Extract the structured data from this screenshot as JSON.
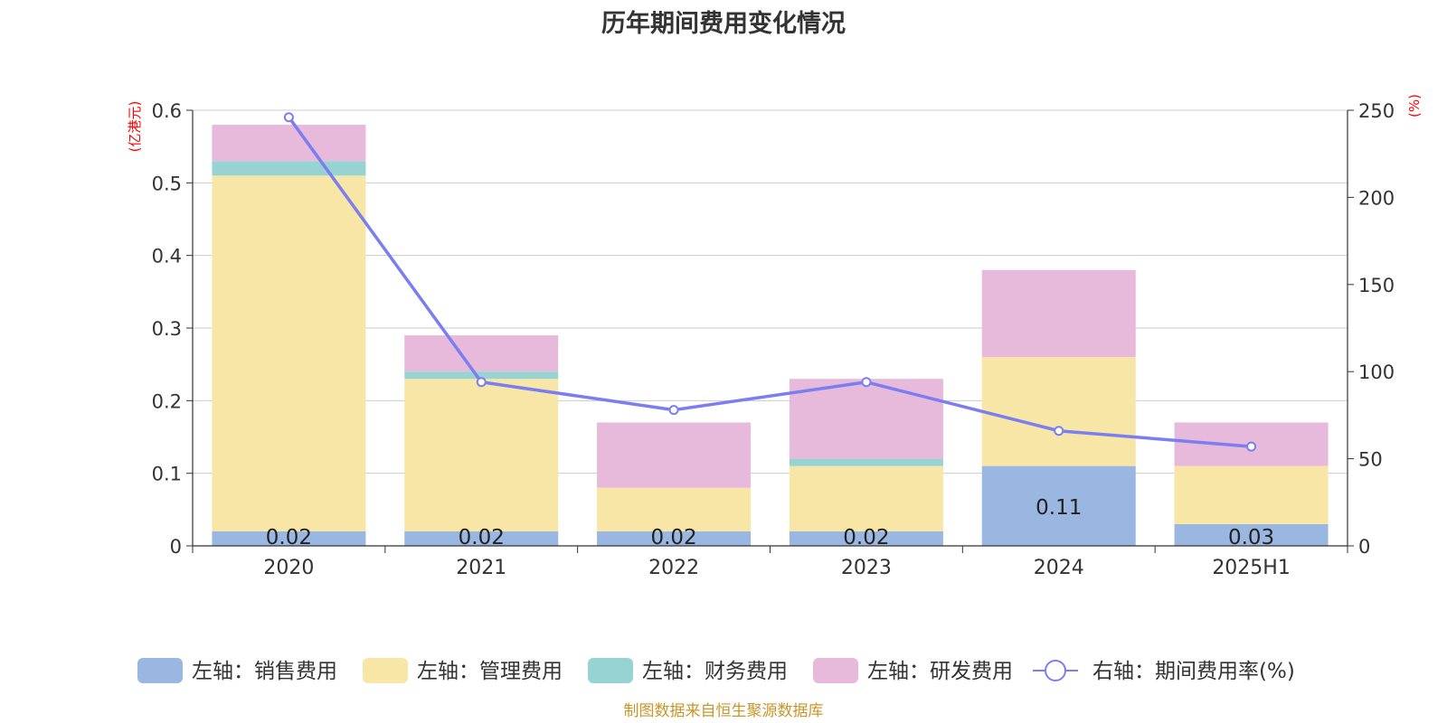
{
  "chart_data": {
    "type": "bar",
    "title": "历年期间费用变化情况",
    "categories": [
      "2020",
      "2021",
      "2022",
      "2023",
      "2024",
      "2025H1"
    ],
    "left_axis": {
      "unit": "(亿港元)",
      "range": [
        0,
        0.6
      ],
      "ticks": [
        "0",
        "0.1",
        "0.2",
        "0.3",
        "0.4",
        "0.5",
        "0.6"
      ]
    },
    "right_axis": {
      "unit": "(%)",
      "range": [
        0,
        250
      ],
      "ticks": [
        "0",
        "50",
        "100",
        "150",
        "200",
        "250"
      ]
    },
    "series": [
      {
        "name": "左轴：销售费用",
        "kind": "bar",
        "axis": "left",
        "color": "#9ab7e1",
        "values": [
          0.02,
          0.02,
          0.02,
          0.02,
          0.11,
          0.03
        ],
        "labels": [
          "0.02",
          "0.02",
          "0.02",
          "0.02",
          "0.11",
          "0.03"
        ]
      },
      {
        "name": "左轴：管理费用",
        "kind": "bar",
        "axis": "left",
        "color": "#f7e6a6",
        "values": [
          0.49,
          0.21,
          0.06,
          0.09,
          0.15,
          0.08
        ]
      },
      {
        "name": "左轴：财务费用",
        "kind": "bar",
        "axis": "left",
        "color": "#97d3d3",
        "values": [
          0.02,
          0.01,
          0.0,
          0.01,
          0.0,
          0.0
        ]
      },
      {
        "name": "左轴：研发费用",
        "kind": "bar",
        "axis": "left",
        "color": "#e7b9da",
        "values": [
          0.05,
          0.05,
          0.09,
          0.11,
          0.12,
          0.06
        ]
      },
      {
        "name": "右轴：期间费用率(%)",
        "kind": "line",
        "axis": "right",
        "color": "#7a7ef0",
        "values": [
          246,
          94,
          78,
          94,
          66,
          57
        ]
      }
    ],
    "grid": true,
    "legend_position": "bottom",
    "footer": "制图数据来自恒生聚源数据库",
    "footer_color": "#c8962a",
    "axis_unit_color": "#ff0000"
  }
}
